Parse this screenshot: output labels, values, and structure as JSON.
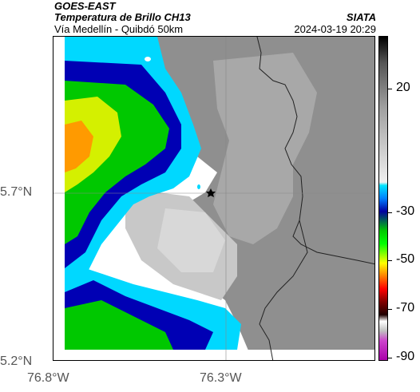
{
  "header": {
    "satellite": "GOES-EAST",
    "product": "Temperatura de Brillo CH13",
    "source": "SIATA",
    "subtitle": "Vía Medellín - Quibdó 50km",
    "timestamp": "2024-03-19 20:29"
  },
  "axes": {
    "latitude_labels": [
      "5.7°N",
      "5.2°N"
    ],
    "longitude_labels": [
      "76.8°W",
      "76.3°W"
    ]
  },
  "colorbar": {
    "tick_labels": [
      "20",
      "-30",
      "-50",
      "-70",
      "-90"
    ],
    "colors": [
      "#000000",
      "#ffffff",
      "#00e5ff",
      "#0000a0",
      "#00c800",
      "#ffff00",
      "#ff4000",
      "#800000",
      "#ffffff",
      "#cc44cc"
    ]
  },
  "map": {
    "marker": "star-icon",
    "legend_units": "brightness temperature"
  }
}
